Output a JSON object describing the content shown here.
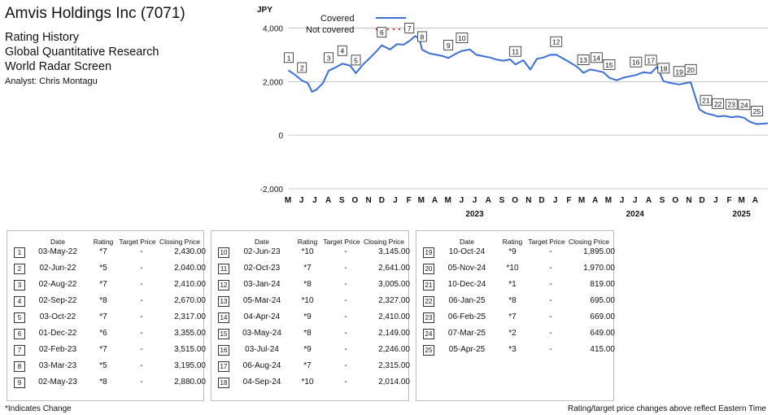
{
  "header": {
    "company": "Amvis Holdings Inc (7071)",
    "line1": "Rating History",
    "line2": "Global Quantitative Research",
    "line3": "World Radar Screen",
    "analyst": "Analyst: Chris Montagu"
  },
  "chart_data": {
    "type": "line",
    "ylabel": "JPY",
    "ylim": [
      -2000,
      4500
    ],
    "yticks": [
      -2000,
      0,
      2000,
      4000
    ],
    "ytick_labels": [
      "-2,000",
      "0",
      "2,000",
      "4,000"
    ],
    "xlim": [
      "2022-05-01",
      "2025-04-30"
    ],
    "month_ticks": [
      "M",
      "J",
      "J",
      "A",
      "S",
      "O",
      "N",
      "D",
      "J",
      "F",
      "M",
      "A",
      "M",
      "J",
      "J",
      "A",
      "S",
      "O",
      "N",
      "D",
      "J",
      "F",
      "M",
      "A",
      "M",
      "J",
      "J",
      "A",
      "S",
      "O",
      "N",
      "D",
      "J",
      "F",
      "M",
      "A"
    ],
    "year_labels": [
      {
        "label": "2023",
        "date": "2023-07-01"
      },
      {
        "label": "2024",
        "date": "2024-07-01"
      },
      {
        "label": "2025",
        "date": "2025-03-01"
      }
    ],
    "gridlines": true,
    "legend_position": "top-left",
    "series": [
      {
        "name": "Covered",
        "color": "#3a6fd8",
        "dash": "solid",
        "points": [
          [
            "2022-05-02",
            2420
          ],
          [
            "2022-05-15",
            2280
          ],
          [
            "2022-05-25",
            2150
          ],
          [
            "2022-06-02",
            2040
          ],
          [
            "2022-06-15",
            1950
          ],
          [
            "2022-06-25",
            1620
          ],
          [
            "2022-07-05",
            1700
          ],
          [
            "2022-07-20",
            1950
          ],
          [
            "2022-08-02",
            2410
          ],
          [
            "2022-08-20",
            2550
          ],
          [
            "2022-09-02",
            2670
          ],
          [
            "2022-09-20",
            2600
          ],
          [
            "2022-10-03",
            2317
          ],
          [
            "2022-10-20",
            2650
          ],
          [
            "2022-11-05",
            2900
          ],
          [
            "2022-11-20",
            3150
          ],
          [
            "2022-12-01",
            3355
          ],
          [
            "2022-12-20",
            3200
          ],
          [
            "2023-01-05",
            3400
          ],
          [
            "2023-01-20",
            3380
          ],
          [
            "2023-02-02",
            3515
          ],
          [
            "2023-02-15",
            3700
          ],
          [
            "2023-02-25",
            3600
          ],
          [
            "2023-03-03",
            3195
          ],
          [
            "2023-03-20",
            3050
          ],
          [
            "2023-04-05",
            3000
          ],
          [
            "2023-04-20",
            2950
          ],
          [
            "2023-05-02",
            2880
          ],
          [
            "2023-05-20",
            3050
          ],
          [
            "2023-06-02",
            3145
          ],
          [
            "2023-06-20",
            3200
          ],
          [
            "2023-07-05",
            3000
          ],
          [
            "2023-07-20",
            2950
          ],
          [
            "2023-08-05",
            2900
          ],
          [
            "2023-08-20",
            2820
          ],
          [
            "2023-09-05",
            2780
          ],
          [
            "2023-09-20",
            2830
          ],
          [
            "2023-10-02",
            2641
          ],
          [
            "2023-10-20",
            2800
          ],
          [
            "2023-11-05",
            2450
          ],
          [
            "2023-11-20",
            2850
          ],
          [
            "2023-12-05",
            2900
          ],
          [
            "2023-12-20",
            3000
          ],
          [
            "2024-01-03",
            3005
          ],
          [
            "2024-01-20",
            2850
          ],
          [
            "2024-02-05",
            2700
          ],
          [
            "2024-02-20",
            2550
          ],
          [
            "2024-03-05",
            2327
          ],
          [
            "2024-03-20",
            2450
          ],
          [
            "2024-04-04",
            2410
          ],
          [
            "2024-04-20",
            2350
          ],
          [
            "2024-05-03",
            2149
          ],
          [
            "2024-05-20",
            2050
          ],
          [
            "2024-06-05",
            2150
          ],
          [
            "2024-06-20",
            2200
          ],
          [
            "2024-07-03",
            2246
          ],
          [
            "2024-07-20",
            2350
          ],
          [
            "2024-08-06",
            2315
          ],
          [
            "2024-08-20",
            2550
          ],
          [
            "2024-09-04",
            2014
          ],
          [
            "2024-09-20",
            1950
          ],
          [
            "2024-10-10",
            1895
          ],
          [
            "2024-10-25",
            1950
          ],
          [
            "2024-11-05",
            1970
          ],
          [
            "2024-11-15",
            1450
          ],
          [
            "2024-11-25",
            960
          ],
          [
            "2024-12-10",
            819
          ],
          [
            "2024-12-25",
            760
          ],
          [
            "2025-01-06",
            695
          ],
          [
            "2025-01-20",
            720
          ],
          [
            "2025-02-06",
            669
          ],
          [
            "2025-02-20",
            700
          ],
          [
            "2025-03-07",
            649
          ],
          [
            "2025-03-20",
            500
          ],
          [
            "2025-04-05",
            415
          ],
          [
            "2025-04-20",
            430
          ],
          [
            "2025-04-30",
            445
          ]
        ]
      },
      {
        "name": "Not covered",
        "color": "#e53935",
        "dash": "dotted",
        "points": []
      }
    ],
    "markers": [
      {
        "label": "1",
        "date": "2022-05-03"
      },
      {
        "label": "2",
        "date": "2022-06-02"
      },
      {
        "label": "3",
        "date": "2022-08-02"
      },
      {
        "label": "4",
        "date": "2022-09-02"
      },
      {
        "label": "5",
        "date": "2022-10-03"
      },
      {
        "label": "6",
        "date": "2022-12-01"
      },
      {
        "label": "7",
        "date": "2023-02-02"
      },
      {
        "label": "8",
        "date": "2023-03-03"
      },
      {
        "label": "9",
        "date": "2023-05-02"
      },
      {
        "label": "10",
        "date": "2023-06-02"
      },
      {
        "label": "11",
        "date": "2023-10-02"
      },
      {
        "label": "12",
        "date": "2024-01-03"
      },
      {
        "label": "13",
        "date": "2024-03-05"
      },
      {
        "label": "14",
        "date": "2024-04-04"
      },
      {
        "label": "15",
        "date": "2024-05-03"
      },
      {
        "label": "16",
        "date": "2024-07-03"
      },
      {
        "label": "17",
        "date": "2024-08-06"
      },
      {
        "label": "18",
        "date": "2024-09-04"
      },
      {
        "label": "19",
        "date": "2024-10-10"
      },
      {
        "label": "20",
        "date": "2024-11-05"
      },
      {
        "label": "21",
        "date": "2024-12-10"
      },
      {
        "label": "22",
        "date": "2025-01-06"
      },
      {
        "label": "23",
        "date": "2025-02-06"
      },
      {
        "label": "24",
        "date": "2025-03-07"
      },
      {
        "label": "25",
        "date": "2025-04-05"
      }
    ]
  },
  "tables": [
    {
      "headers": {
        "date": "Date",
        "rating": "Rating",
        "target": "Target Price",
        "close": "Closing Price"
      },
      "rows": [
        {
          "n": "1",
          "date": "03-May-22",
          "rating": "*7",
          "target": "-",
          "close": "2,430.00"
        },
        {
          "n": "2",
          "date": "02-Jun-22",
          "rating": "*5",
          "target": "-",
          "close": "2,040.00"
        },
        {
          "n": "3",
          "date": "02-Aug-22",
          "rating": "*7",
          "target": "-",
          "close": "2,410.00"
        },
        {
          "n": "4",
          "date": "02-Sep-22",
          "rating": "*8",
          "target": "-",
          "close": "2,670.00"
        },
        {
          "n": "5",
          "date": "03-Oct-22",
          "rating": "*7",
          "target": "-",
          "close": "2,317.00"
        },
        {
          "n": "6",
          "date": "01-Dec-22",
          "rating": "*6",
          "target": "-",
          "close": "3,355.00"
        },
        {
          "n": "7",
          "date": "02-Feb-23",
          "rating": "*7",
          "target": "-",
          "close": "3,515.00"
        },
        {
          "n": "8",
          "date": "03-Mar-23",
          "rating": "*5",
          "target": "-",
          "close": "3,195.00"
        },
        {
          "n": "9",
          "date": "02-May-23",
          "rating": "*8",
          "target": "-",
          "close": "2,880.00"
        }
      ]
    },
    {
      "headers": {
        "date": "Date",
        "rating": "Rating",
        "target": "Target Price",
        "close": "Closing Price"
      },
      "rows": [
        {
          "n": "10",
          "date": "02-Jun-23",
          "rating": "*10",
          "target": "-",
          "close": "3,145.00"
        },
        {
          "n": "11",
          "date": "02-Oct-23",
          "rating": "*7",
          "target": "-",
          "close": "2,641.00"
        },
        {
          "n": "12",
          "date": "03-Jan-24",
          "rating": "*8",
          "target": "-",
          "close": "3,005.00"
        },
        {
          "n": "13",
          "date": "05-Mar-24",
          "rating": "*10",
          "target": "-",
          "close": "2,327.00"
        },
        {
          "n": "14",
          "date": "04-Apr-24",
          "rating": "*9",
          "target": "-",
          "close": "2,410.00"
        },
        {
          "n": "15",
          "date": "03-May-24",
          "rating": "*8",
          "target": "-",
          "close": "2,149.00"
        },
        {
          "n": "16",
          "date": "03-Jul-24",
          "rating": "*9",
          "target": "-",
          "close": "2,246.00"
        },
        {
          "n": "17",
          "date": "06-Aug-24",
          "rating": "*7",
          "target": "-",
          "close": "2,315.00"
        },
        {
          "n": "18",
          "date": "04-Sep-24",
          "rating": "*10",
          "target": "-",
          "close": "2,014.00"
        }
      ]
    },
    {
      "headers": {
        "date": "Date",
        "rating": "Rating",
        "target": "Target Price",
        "close": "Closing Price"
      },
      "rows": [
        {
          "n": "19",
          "date": "10-Oct-24",
          "rating": "*9",
          "target": "-",
          "close": "1,895.00"
        },
        {
          "n": "20",
          "date": "05-Nov-24",
          "rating": "*10",
          "target": "-",
          "close": "1,970.00"
        },
        {
          "n": "21",
          "date": "10-Dec-24",
          "rating": "*1",
          "target": "-",
          "close": "819.00"
        },
        {
          "n": "22",
          "date": "06-Jan-25",
          "rating": "*8",
          "target": "-",
          "close": "695.00"
        },
        {
          "n": "23",
          "date": "06-Feb-25",
          "rating": "*7",
          "target": "-",
          "close": "669.00"
        },
        {
          "n": "24",
          "date": "07-Mar-25",
          "rating": "*2",
          "target": "-",
          "close": "649.00"
        },
        {
          "n": "25",
          "date": "05-Apr-25",
          "rating": "*3",
          "target": "-",
          "close": "415.00"
        }
      ]
    }
  ],
  "footer": {
    "left": "*Indicates Change",
    "right": "Rating/target price changes above reflect Eastern Time"
  }
}
